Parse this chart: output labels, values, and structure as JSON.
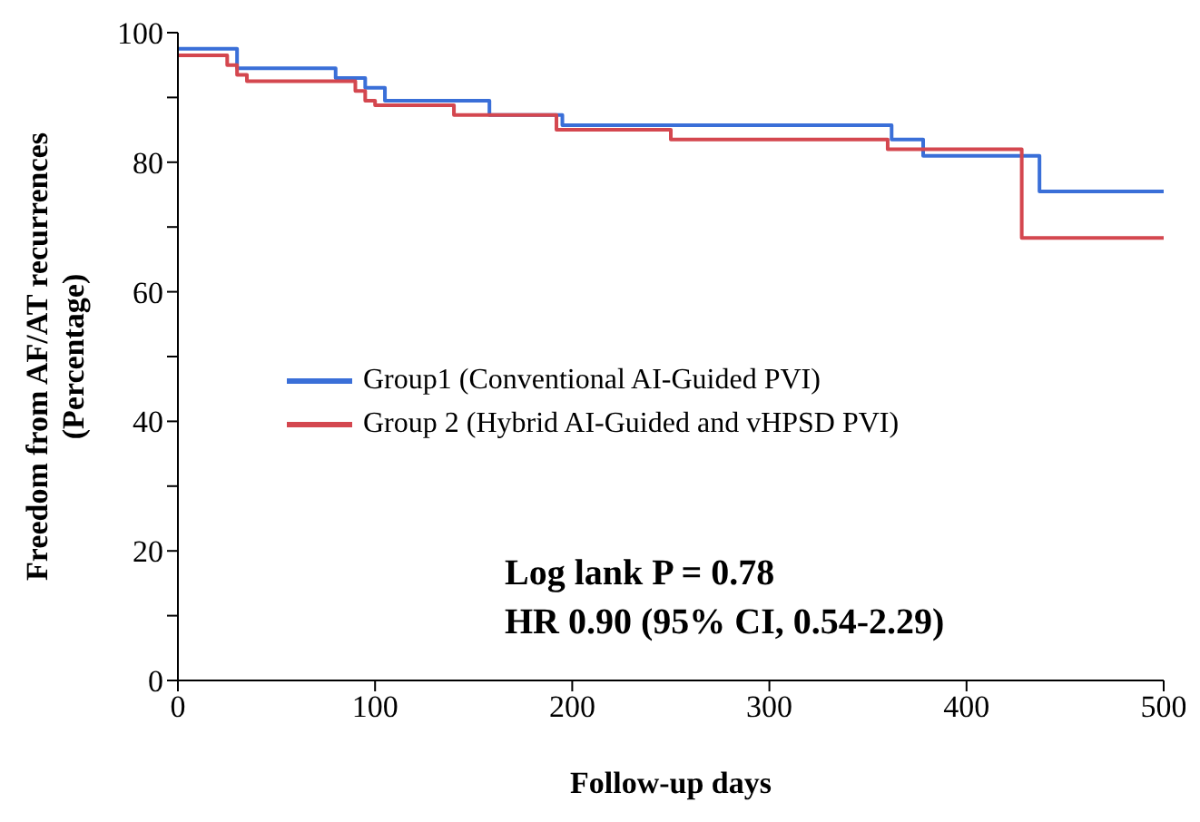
{
  "chart_data": {
    "type": "step",
    "xlabel": "Follow-up days",
    "ylabel": "Freedom from AF/AT recurrences\n(Percentage)",
    "xlim": [
      0,
      500
    ],
    "xticks": [
      0,
      100,
      200,
      300,
      400,
      500
    ],
    "ylim": [
      0,
      100
    ],
    "yticks": [
      0,
      {
        "value": 10,
        "label": null
      },
      20,
      {
        "value": 30,
        "label": null
      },
      40,
      {
        "value": 50,
        "label": null
      },
      60,
      {
        "value": 70,
        "label": null
      },
      80,
      {
        "value": 90,
        "label": null
      },
      100
    ],
    "legend": "left",
    "series": [
      {
        "name": "Group1 (Conventional AI-Guided PVI)",
        "color": "#3a6fd8",
        "x": [
          0,
          30,
          80,
          95,
          105,
          158,
          195,
          362,
          378,
          437,
          500
        ],
        "values": [
          97.5,
          94.5,
          93,
          91.5,
          89.5,
          87.3,
          85.7,
          83.5,
          81,
          75.5,
          75.5
        ]
      },
      {
        "name": "Group 2 (Hybrid AI-Guided and vHPSD PVI)",
        "color": "#d4474f",
        "x": [
          0,
          25,
          30,
          35,
          90,
          95,
          100,
          140,
          192,
          250,
          360,
          428,
          500
        ],
        "values": [
          96.5,
          95,
          93.5,
          92.5,
          91,
          89.5,
          88.8,
          87.3,
          85,
          83.5,
          82,
          68.3,
          68.3
        ]
      }
    ],
    "annotations": [
      "Log lank P = 0.78",
      "HR 0.90 (95% CI, 0.54-2.29)"
    ]
  }
}
